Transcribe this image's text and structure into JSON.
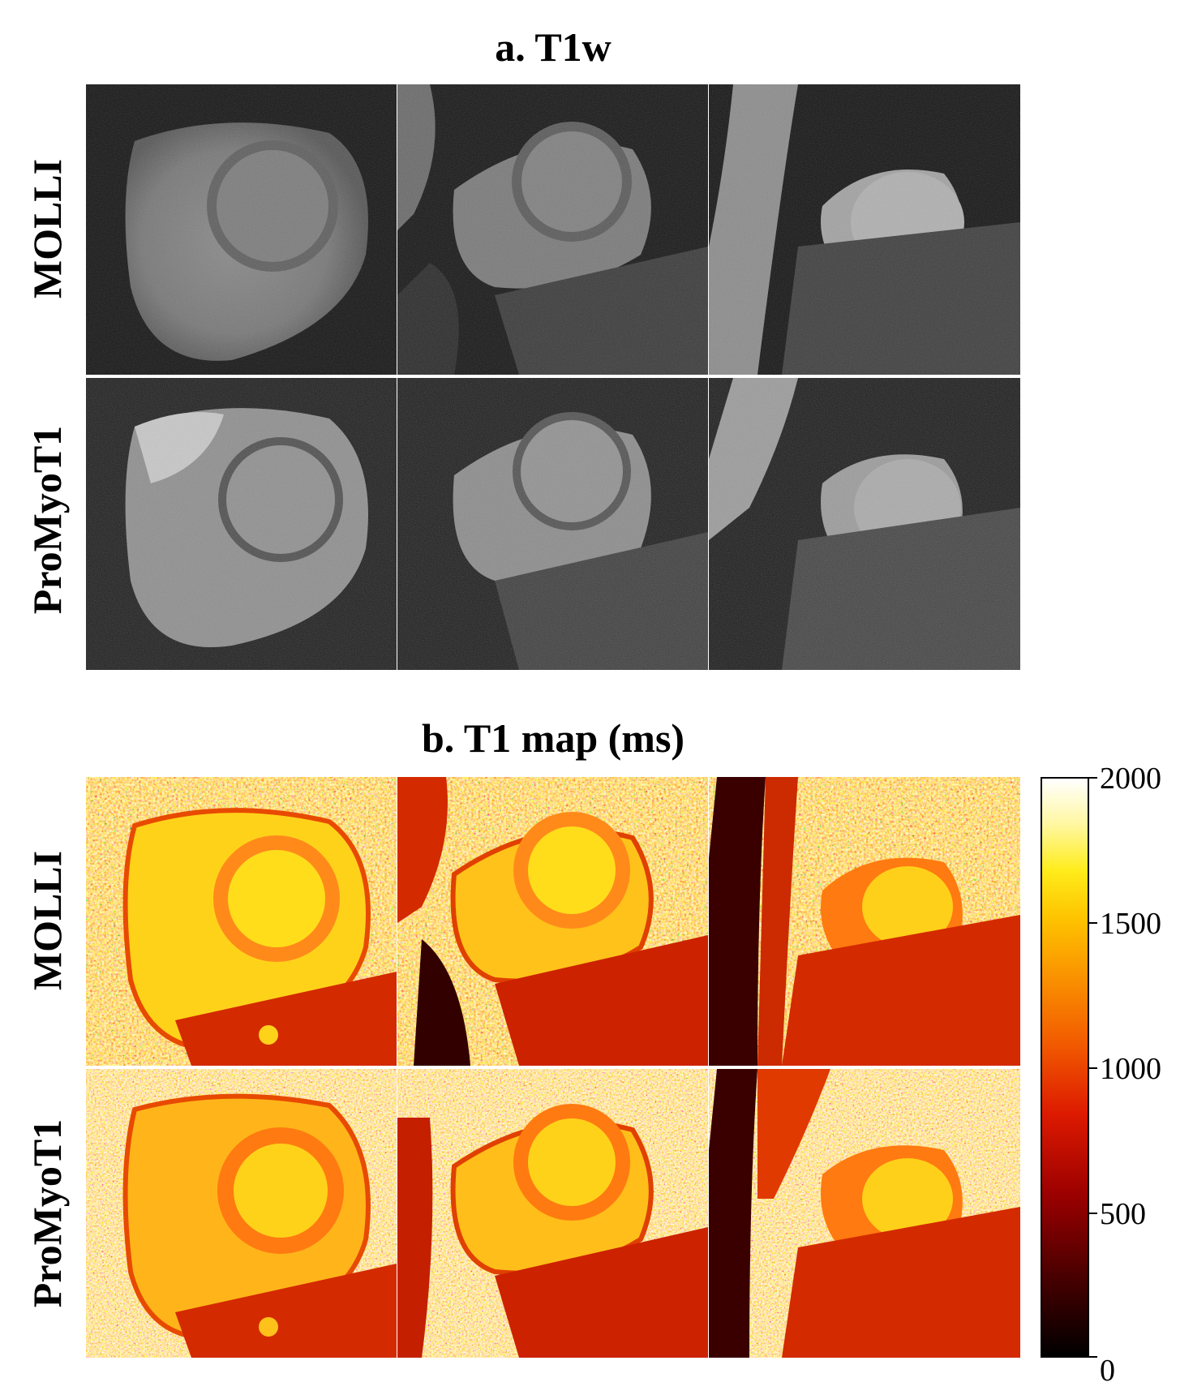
{
  "section_a": {
    "title": "a. T1w",
    "rows": [
      "MOLLI",
      "ProMyoT1"
    ],
    "columns": 3,
    "modality": "grayscale"
  },
  "section_b": {
    "title": "b. T1 map (ms)",
    "rows": [
      "MOLLI",
      "ProMyoT1"
    ],
    "columns": 3,
    "modality": "hot-colormap"
  },
  "colorbar": {
    "ticks": [
      "0",
      "500",
      "1000",
      "1500",
      "2000"
    ],
    "range": [
      0,
      2000
    ],
    "colormap": "hot"
  }
}
